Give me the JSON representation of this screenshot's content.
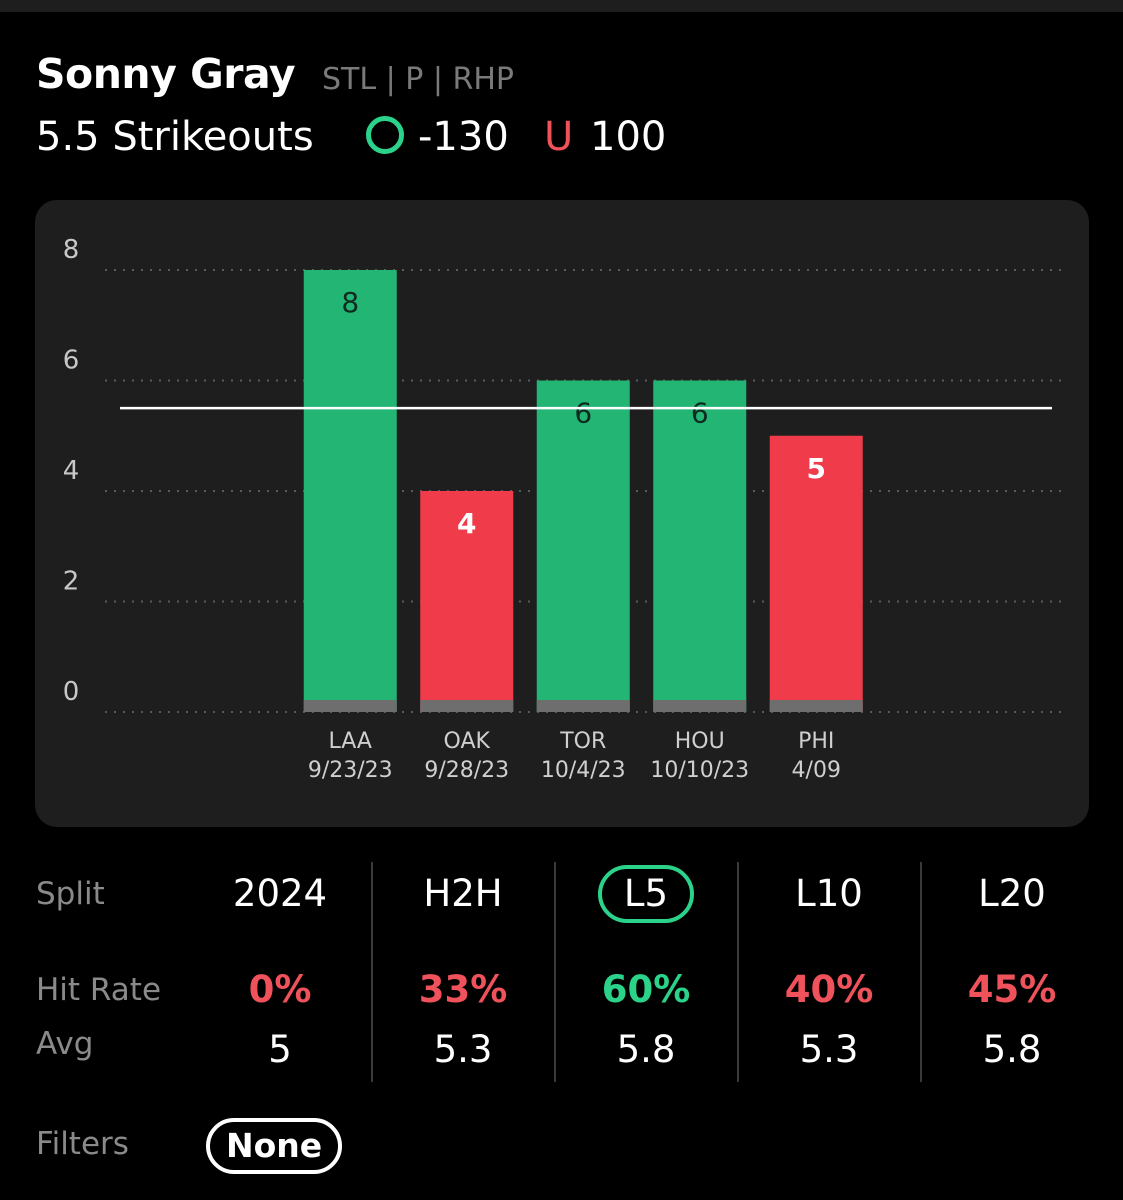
{
  "player": {
    "name": "Sonny Gray",
    "meta": "STL | P | RHP"
  },
  "prop": {
    "line": "5.5 Strikeouts",
    "over_odds": "-130",
    "under_marker": "U",
    "under_odds": "100"
  },
  "colors": {
    "green": "#22b573",
    "red": "#ef3b4a",
    "over": "#2bd38a",
    "under": "#f0525c"
  },
  "chart_data": {
    "type": "bar",
    "categories": [
      "LAA",
      "OAK",
      "TOR",
      "HOU",
      "PHI"
    ],
    "dates": [
      "9/23/23",
      "9/28/23",
      "10/4/23",
      "10/10/23",
      "4/09"
    ],
    "values": [
      8,
      4,
      6,
      6,
      5
    ],
    "results": [
      "over",
      "under",
      "over",
      "over",
      "under"
    ],
    "threshold": 5.5,
    "ylim": [
      0,
      8
    ],
    "yticks": [
      0,
      2,
      4,
      6,
      8
    ],
    "grid": true
  },
  "splits": {
    "labels": {
      "split": "Split",
      "hit_rate": "Hit Rate",
      "avg": "Avg"
    },
    "columns": [
      {
        "name": "2024",
        "hit_rate": "0%",
        "avg": "5",
        "status": "under",
        "active": false
      },
      {
        "name": "H2H",
        "hit_rate": "33%",
        "avg": "5.3",
        "status": "under",
        "active": false
      },
      {
        "name": "L5",
        "hit_rate": "60%",
        "avg": "5.8",
        "status": "over",
        "active": true
      },
      {
        "name": "L10",
        "hit_rate": "40%",
        "avg": "5.3",
        "status": "under",
        "active": false
      },
      {
        "name": "L20",
        "hit_rate": "45%",
        "avg": "5.8",
        "status": "under",
        "active": false
      }
    ]
  },
  "filters": {
    "label": "Filters",
    "value": "None"
  }
}
